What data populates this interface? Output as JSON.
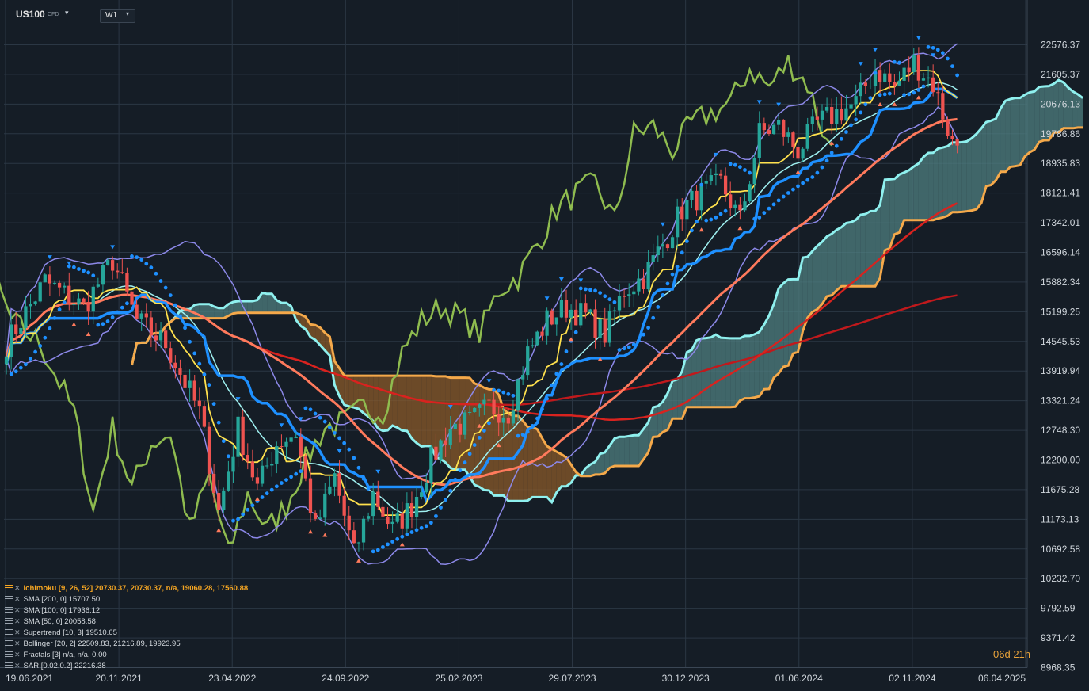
{
  "toolbar": {
    "symbol": "US100",
    "symbol_suffix": "CFD",
    "timeframe": "W1"
  },
  "countdown": {
    "days": "06d",
    "hours": "21h"
  },
  "legend": [
    {
      "text": "Ichimoku  [9, 26, 52]  20730.37,  20730.37,  n/a,  19060.28,  17560.88"
    },
    {
      "text": "SMA  [200,  0]  15707.50"
    },
    {
      "text": "SMA  [100,  0]  17936.12"
    },
    {
      "text": "SMA  [50,  0]  20058.58"
    },
    {
      "text": "Supertrend   [10,  3]  19510.65"
    },
    {
      "text": "Bollinger   [20,  2]  22509.83,   21216.89,   19923.95"
    },
    {
      "text": "Fractals   [3]  n/a,  n/a,  0.00"
    },
    {
      "text": "SAR  [0.02,0.2]   22216.38"
    }
  ],
  "colors": {
    "background": "#151d26",
    "grid": "#2b3744",
    "up_candle": "#26a69a",
    "down_candle": "#ef5350",
    "tenkan": "#ffe14d",
    "kijun": "#1e90ff",
    "senkou_a": "#8ff0ee",
    "senkou_b": "#f5a94a",
    "chikou": "#8fbc4f",
    "sma200": "#c0191c",
    "sma100": "#d8231f",
    "sma50": "#ff7a5c",
    "bollinger_outer": "#8c88e8",
    "bollinger_mid": "#9ff0f0",
    "sar": "#1e90ff",
    "fractal_up": "#1e90ff",
    "fractal_down": "#ff7a5c",
    "kumo_bull": "#4f7f80",
    "kumo_bear": "#8a5a2a"
  },
  "chart_data": {
    "type": "candlestick",
    "symbol": "US100",
    "timeframe": "W1",
    "x_tick_labels": [
      "19.06.2021",
      "20.11.2021",
      "23.04.2022",
      "24.09.2022",
      "25.02.2023",
      "29.07.2023",
      "30.12.2023",
      "01.06.2024",
      "02.11.2024",
      "06.04.2025"
    ],
    "y_tick_labels": [
      "22576.37",
      "21605.37",
      "20676.13",
      "19786.86",
      "18935.83",
      "18121.41",
      "17342.01",
      "16596.14",
      "15882.34",
      "15199.25",
      "14545.53",
      "13919.94",
      "13321.24",
      "12748.30",
      "12200.00",
      "11675.28",
      "11173.13",
      "10692.58",
      "10232.70",
      "9792.59",
      "9371.42",
      "8968.35"
    ],
    "ylim": [
      8968.35,
      22576.37
    ],
    "log_scale": true,
    "grid": true,
    "price_path": [
      [
        0,
        14500
      ],
      [
        8,
        15900
      ],
      [
        16,
        15300
      ],
      [
        22,
        16400
      ],
      [
        27,
        15000
      ],
      [
        33,
        14500
      ],
      [
        40,
        13100
      ],
      [
        44,
        11300
      ],
      [
        48,
        12800
      ],
      [
        52,
        11700
      ],
      [
        56,
        12500
      ],
      [
        60,
        12700
      ],
      [
        64,
        11000
      ],
      [
        68,
        11900
      ],
      [
        72,
        10600
      ],
      [
        76,
        11600
      ],
      [
        80,
        11000
      ],
      [
        84,
        11400
      ],
      [
        88,
        12200
      ],
      [
        92,
        12800
      ],
      [
        96,
        12900
      ],
      [
        100,
        13200
      ],
      [
        104,
        13100
      ],
      [
        108,
        14300
      ],
      [
        112,
        15000
      ],
      [
        116,
        15300
      ],
      [
        120,
        15100
      ],
      [
        124,
        14700
      ],
      [
        128,
        15700
      ],
      [
        132,
        16000
      ],
      [
        136,
        16800
      ],
      [
        140,
        17700
      ],
      [
        144,
        18100
      ],
      [
        148,
        18400
      ],
      [
        152,
        17400
      ],
      [
        156,
        19800
      ],
      [
        160,
        20000
      ],
      [
        164,
        19300
      ],
      [
        168,
        20100
      ],
      [
        172,
        20400
      ],
      [
        176,
        20700
      ],
      [
        180,
        21800
      ],
      [
        184,
        21200
      ],
      [
        188,
        22000
      ],
      [
        192,
        21300
      ],
      [
        196,
        19500
      ]
    ],
    "indicators": {
      "ichimoku": {
        "params": [
          9,
          26,
          52
        ],
        "tenkan": 20730.37,
        "kijun": 20730.37,
        "chikou": "n/a",
        "senkou_a": 19060.28,
        "senkou_b": 17560.88
      },
      "sma200": 15707.5,
      "sma100": 17936.12,
      "sma50": 20058.58,
      "supertrend": {
        "params": [
          10,
          3
        ],
        "value": 19510.65
      },
      "bollinger": {
        "params": [
          20,
          2
        ],
        "upper": 22509.83,
        "middle": 21216.89,
        "lower": 19923.95
      },
      "fractals": {
        "params": [
          3
        ],
        "up": "n/a",
        "down": "n/a",
        "value": 0.0
      },
      "sar": {
        "params": [
          0.02,
          0.2
        ],
        "value": 22216.38
      }
    }
  }
}
